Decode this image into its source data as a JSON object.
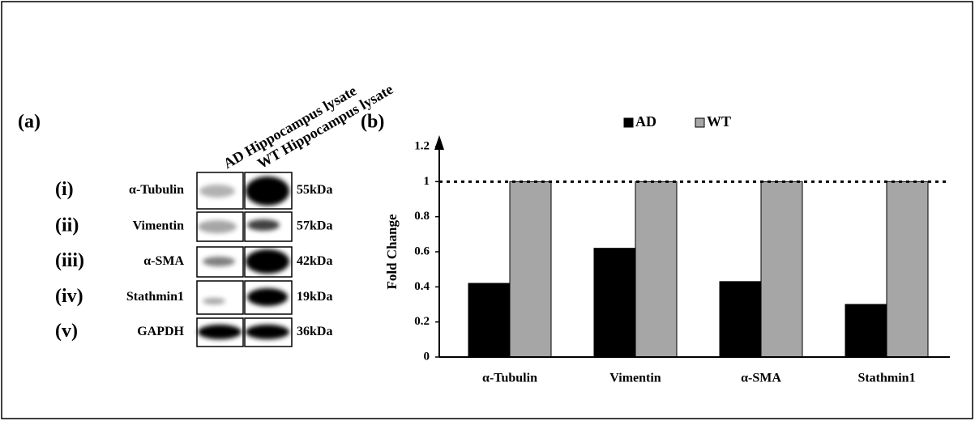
{
  "panel_a": {
    "label": "(a)",
    "lanes": [
      "AD Hippocampus lysate",
      "WT Hippocampus lysate"
    ],
    "rows": [
      {
        "numeral": "(i)",
        "protein": "α-Tubulin",
        "size": "55kDa"
      },
      {
        "numeral": "(ii)",
        "protein": "Vimentin",
        "size": "57kDa"
      },
      {
        "numeral": "(iii)",
        "protein": "α-SMA",
        "size": "42kDa"
      },
      {
        "numeral": "(iv)",
        "protein": "Stathmin1",
        "size": "19kDa"
      },
      {
        "numeral": "(v)",
        "protein": "GAPDH",
        "size": "36kDa"
      }
    ]
  },
  "chart_data": {
    "type": "bar",
    "title": "(b)",
    "y_label": "Fold Change",
    "categories": [
      "α-Tubulin",
      "Vimentin",
      "α-SMA",
      "Stathmin1"
    ],
    "series": [
      {
        "name": "AD",
        "color": "#000000",
        "values": [
          0.42,
          0.62,
          0.43,
          0.3
        ]
      },
      {
        "name": "WT",
        "color": "#a6a6a6",
        "values": [
          1,
          1,
          1,
          1
        ]
      }
    ],
    "ylim": [
      0,
      1.2
    ],
    "yticks": [
      0,
      0.2,
      0.4,
      0.6,
      0.8,
      1,
      1.2
    ],
    "reference_line": 1,
    "legend": "top"
  }
}
